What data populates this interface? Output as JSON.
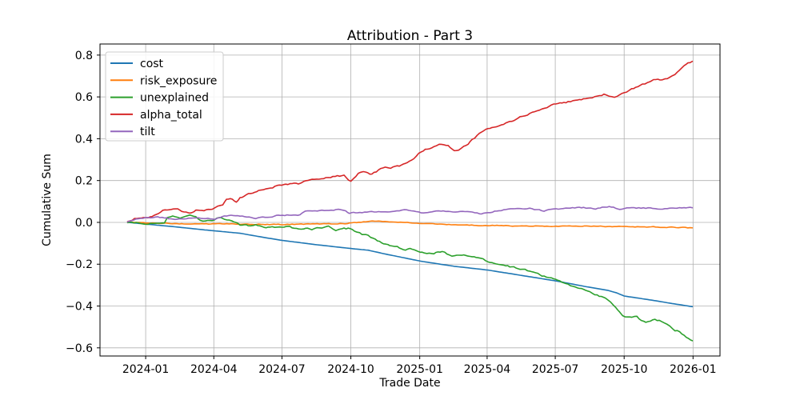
{
  "chart_data": {
    "type": "line",
    "title": "Attribution - Part 3",
    "xlabel": "Trade Date",
    "ylabel": "Cumulative Sum",
    "grid": true,
    "legend_position": "upper left",
    "x_unit": "days since 2023-12-08",
    "xlim_days": [
      -37,
      791
    ],
    "ylim": [
      -0.639,
      0.853
    ],
    "x_ticks": [
      {
        "label": "2024-01",
        "day": 24
      },
      {
        "label": "2024-04",
        "day": 115
      },
      {
        "label": "2024-07",
        "day": 206
      },
      {
        "label": "2024-10",
        "day": 298
      },
      {
        "label": "2025-01",
        "day": 390
      },
      {
        "label": "2025-04",
        "day": 480
      },
      {
        "label": "2025-07",
        "day": 571
      },
      {
        "label": "2025-10",
        "day": 663
      },
      {
        "label": "2026-01",
        "day": 755
      }
    ],
    "y_ticks": [
      {
        "label": "0.8",
        "value": 0.8
      },
      {
        "label": "0.6",
        "value": 0.6
      },
      {
        "label": "0.4",
        "value": 0.4
      },
      {
        "label": "0.2",
        "value": 0.2
      },
      {
        "label": "0.0",
        "value": 0.0
      },
      {
        "label": "−0.2",
        "value": -0.2
      },
      {
        "label": "−0.4",
        "value": -0.4
      },
      {
        "label": "−0.6",
        "value": -0.6
      }
    ],
    "colors": {
      "background": "#ffffff",
      "grid": "#b0b0b0",
      "spine": "#000000",
      "legend_border": "#cccccc",
      "legend_bg": "#ffffff"
    },
    "series": [
      {
        "name": "cost",
        "color": "#1f77b4",
        "points": [
          [
            0,
            0.0
          ],
          [
            24,
            -0.008
          ],
          [
            60,
            -0.02
          ],
          [
            100,
            -0.035
          ],
          [
            150,
            -0.052
          ],
          [
            182,
            -0.072
          ],
          [
            204,
            -0.085
          ],
          [
            250,
            -0.106
          ],
          [
            298,
            -0.125
          ],
          [
            321,
            -0.133
          ],
          [
            345,
            -0.152
          ],
          [
            392,
            -0.186
          ],
          [
            436,
            -0.21
          ],
          [
            481,
            -0.228
          ],
          [
            530,
            -0.256
          ],
          [
            572,
            -0.28
          ],
          [
            610,
            -0.306
          ],
          [
            641,
            -0.325
          ],
          [
            652,
            -0.336
          ],
          [
            663,
            -0.352
          ],
          [
            700,
            -0.372
          ],
          [
            727,
            -0.388
          ],
          [
            754,
            -0.403
          ]
        ]
      },
      {
        "name": "risk_exposure",
        "color": "#ff7f0e",
        "points": [
          [
            0,
            0.0
          ],
          [
            24,
            -0.003
          ],
          [
            60,
            -0.006
          ],
          [
            117,
            -0.008
          ],
          [
            160,
            -0.009
          ],
          [
            204,
            -0.01
          ],
          [
            250,
            -0.008
          ],
          [
            290,
            -0.006
          ],
          [
            315,
            0.003
          ],
          [
            335,
            0.007
          ],
          [
            355,
            0.004
          ],
          [
            392,
            -0.004
          ],
          [
            420,
            -0.009
          ],
          [
            450,
            -0.013
          ],
          [
            481,
            -0.015
          ],
          [
            520,
            -0.017
          ],
          [
            572,
            -0.019
          ],
          [
            610,
            -0.018
          ],
          [
            650,
            -0.02
          ],
          [
            690,
            -0.021
          ],
          [
            720,
            -0.023
          ],
          [
            754,
            -0.026
          ]
        ]
      },
      {
        "name": "unexplained",
        "color": "#2ca02c",
        "points": [
          [
            0,
            0.0
          ],
          [
            11,
            -0.003
          ],
          [
            27,
            -0.006
          ],
          [
            43,
            -0.004
          ],
          [
            49,
            -0.001
          ],
          [
            53,
            0.025
          ],
          [
            60,
            0.03
          ],
          [
            70,
            0.021
          ],
          [
            83,
            0.032
          ],
          [
            91,
            0.026
          ],
          [
            97,
            0.006
          ],
          [
            107,
            0.008
          ],
          [
            116,
            0.01
          ],
          [
            121,
            0.022
          ],
          [
            129,
            0.017
          ],
          [
            139,
            0.004
          ],
          [
            150,
            -0.012
          ],
          [
            161,
            -0.017
          ],
          [
            171,
            -0.012
          ],
          [
            182,
            -0.021
          ],
          [
            193,
            -0.024
          ],
          [
            203,
            -0.023
          ],
          [
            214,
            -0.016
          ],
          [
            225,
            -0.029
          ],
          [
            235,
            -0.03
          ],
          [
            246,
            -0.032
          ],
          [
            259,
            -0.026
          ],
          [
            268,
            -0.016
          ],
          [
            278,
            -0.038
          ],
          [
            289,
            -0.031
          ],
          [
            297,
            -0.029
          ],
          [
            303,
            -0.04
          ],
          [
            313,
            -0.057
          ],
          [
            321,
            -0.062
          ],
          [
            328,
            -0.077
          ],
          [
            339,
            -0.096
          ],
          [
            350,
            -0.114
          ],
          [
            360,
            -0.119
          ],
          [
            371,
            -0.129
          ],
          [
            377,
            -0.125
          ],
          [
            385,
            -0.136
          ],
          [
            396,
            -0.145
          ],
          [
            406,
            -0.151
          ],
          [
            420,
            -0.138
          ],
          [
            433,
            -0.164
          ],
          [
            446,
            -0.156
          ],
          [
            460,
            -0.161
          ],
          [
            465,
            -0.168
          ],
          [
            481,
            -0.187
          ],
          [
            492,
            -0.196
          ],
          [
            502,
            -0.205
          ],
          [
            513,
            -0.214
          ],
          [
            524,
            -0.222
          ],
          [
            534,
            -0.231
          ],
          [
            545,
            -0.244
          ],
          [
            556,
            -0.258
          ],
          [
            566,
            -0.268
          ],
          [
            577,
            -0.283
          ],
          [
            588,
            -0.298
          ],
          [
            598,
            -0.313
          ],
          [
            606,
            -0.32
          ],
          [
            617,
            -0.333
          ],
          [
            627,
            -0.348
          ],
          [
            638,
            -0.363
          ],
          [
            645,
            -0.38
          ],
          [
            652,
            -0.404
          ],
          [
            657,
            -0.43
          ],
          [
            661,
            -0.448
          ],
          [
            668,
            -0.452
          ],
          [
            673,
            -0.455
          ],
          [
            680,
            -0.452
          ],
          [
            686,
            -0.47
          ],
          [
            692,
            -0.48
          ],
          [
            698,
            -0.477
          ],
          [
            704,
            -0.464
          ],
          [
            710,
            -0.47
          ],
          [
            717,
            -0.481
          ],
          [
            724,
            -0.493
          ],
          [
            731,
            -0.514
          ],
          [
            737,
            -0.521
          ],
          [
            743,
            -0.539
          ],
          [
            749,
            -0.554
          ],
          [
            754,
            -0.566
          ]
        ]
      },
      {
        "name": "alpha_total",
        "color": "#d62728",
        "points": [
          [
            0,
            0.005
          ],
          [
            9,
            0.018
          ],
          [
            27,
            0.022
          ],
          [
            41,
            0.04
          ],
          [
            47,
            0.06
          ],
          [
            61,
            0.062
          ],
          [
            67,
            0.066
          ],
          [
            75,
            0.052
          ],
          [
            83,
            0.045
          ],
          [
            91,
            0.059
          ],
          [
            102,
            0.056
          ],
          [
            113,
            0.065
          ],
          [
            117,
            0.071
          ],
          [
            127,
            0.083
          ],
          [
            132,
            0.11
          ],
          [
            137,
            0.114
          ],
          [
            145,
            0.1
          ],
          [
            150,
            0.118
          ],
          [
            164,
            0.138
          ],
          [
            175,
            0.152
          ],
          [
            187,
            0.157
          ],
          [
            200,
            0.176
          ],
          [
            211,
            0.182
          ],
          [
            228,
            0.186
          ],
          [
            235,
            0.196
          ],
          [
            246,
            0.205
          ],
          [
            271,
            0.217
          ],
          [
            289,
            0.224
          ],
          [
            298,
            0.196
          ],
          [
            308,
            0.236
          ],
          [
            318,
            0.241
          ],
          [
            326,
            0.23
          ],
          [
            335,
            0.249
          ],
          [
            344,
            0.263
          ],
          [
            351,
            0.256
          ],
          [
            360,
            0.268
          ],
          [
            371,
            0.279
          ],
          [
            382,
            0.305
          ],
          [
            392,
            0.338
          ],
          [
            400,
            0.352
          ],
          [
            412,
            0.366
          ],
          [
            416,
            0.372
          ],
          [
            428,
            0.364
          ],
          [
            436,
            0.347
          ],
          [
            442,
            0.344
          ],
          [
            452,
            0.368
          ],
          [
            460,
            0.394
          ],
          [
            470,
            0.424
          ],
          [
            481,
            0.448
          ],
          [
            492,
            0.46
          ],
          [
            502,
            0.47
          ],
          [
            513,
            0.481
          ],
          [
            524,
            0.502
          ],
          [
            537,
            0.52
          ],
          [
            550,
            0.538
          ],
          [
            560,
            0.552
          ],
          [
            572,
            0.567
          ],
          [
            580,
            0.571
          ],
          [
            588,
            0.576
          ],
          [
            598,
            0.584
          ],
          [
            606,
            0.588
          ],
          [
            617,
            0.593
          ],
          [
            627,
            0.602
          ],
          [
            636,
            0.613
          ],
          [
            643,
            0.607
          ],
          [
            650,
            0.599
          ],
          [
            657,
            0.608
          ],
          [
            663,
            0.618
          ],
          [
            673,
            0.638
          ],
          [
            684,
            0.655
          ],
          [
            694,
            0.668
          ],
          [
            705,
            0.682
          ],
          [
            714,
            0.679
          ],
          [
            724,
            0.691
          ],
          [
            731,
            0.704
          ],
          [
            737,
            0.728
          ],
          [
            743,
            0.748
          ],
          [
            748,
            0.762
          ],
          [
            754,
            0.77
          ]
        ]
      },
      {
        "name": "tilt",
        "color": "#9467bd",
        "points": [
          [
            0,
            0.001
          ],
          [
            5,
            0.008
          ],
          [
            11,
            0.016
          ],
          [
            24,
            0.021
          ],
          [
            40,
            0.024
          ],
          [
            52,
            0.02
          ],
          [
            60,
            0.013
          ],
          [
            75,
            0.018
          ],
          [
            91,
            0.022
          ],
          [
            107,
            0.019
          ],
          [
            117,
            0.018
          ],
          [
            129,
            0.03
          ],
          [
            147,
            0.035
          ],
          [
            171,
            0.021
          ],
          [
            193,
            0.024
          ],
          [
            201,
            0.034
          ],
          [
            230,
            0.036
          ],
          [
            237,
            0.052
          ],
          [
            250,
            0.054
          ],
          [
            278,
            0.06
          ],
          [
            291,
            0.058
          ],
          [
            296,
            0.044
          ],
          [
            310,
            0.048
          ],
          [
            332,
            0.052
          ],
          [
            353,
            0.05
          ],
          [
            369,
            0.061
          ],
          [
            382,
            0.057
          ],
          [
            392,
            0.047
          ],
          [
            412,
            0.055
          ],
          [
            428,
            0.052
          ],
          [
            444,
            0.05
          ],
          [
            460,
            0.047
          ],
          [
            470,
            0.042
          ],
          [
            481,
            0.047
          ],
          [
            502,
            0.06
          ],
          [
            524,
            0.068
          ],
          [
            540,
            0.066
          ],
          [
            556,
            0.054
          ],
          [
            572,
            0.064
          ],
          [
            588,
            0.067
          ],
          [
            609,
            0.071
          ],
          [
            625,
            0.064
          ],
          [
            643,
            0.077
          ],
          [
            657,
            0.062
          ],
          [
            673,
            0.07
          ],
          [
            695,
            0.068
          ],
          [
            711,
            0.064
          ],
          [
            727,
            0.071
          ],
          [
            743,
            0.069
          ],
          [
            754,
            0.07
          ]
        ]
      }
    ]
  }
}
